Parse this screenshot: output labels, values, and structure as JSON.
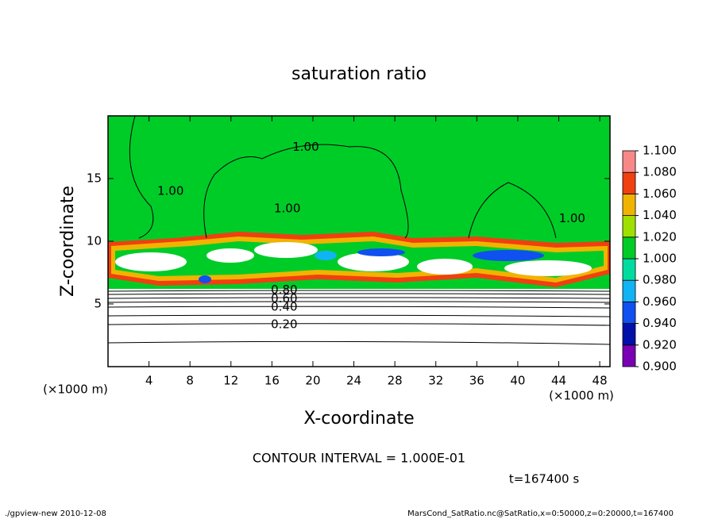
{
  "chart_data": {
    "type": "contour",
    "title": "saturation ratio",
    "xlabel": "X-coordinate",
    "ylabel": "Z-coordinate",
    "x_unit": "(×1000 m)",
    "y_unit": "(×1000 m)",
    "xlim": [
      0,
      49
    ],
    "xticks": [
      4,
      8,
      12,
      16,
      20,
      24,
      28,
      32,
      36,
      40,
      44,
      48
    ],
    "ylim": [
      0,
      20
    ],
    "yticks": [
      5,
      10,
      15
    ],
    "colorbar": {
      "levels": [
        {
          "value": 0.9,
          "label": "0.900"
        },
        {
          "value": 0.92,
          "label": "0.920"
        },
        {
          "value": 0.94,
          "label": "0.940"
        },
        {
          "value": 0.96,
          "label": "0.960"
        },
        {
          "value": 0.98,
          "label": "0.980"
        },
        {
          "value": 1.0,
          "label": "1.000"
        },
        {
          "value": 1.02,
          "label": "1.020"
        },
        {
          "value": 1.04,
          "label": "1.040"
        },
        {
          "value": 1.06,
          "label": "1.060"
        },
        {
          "value": 1.08,
          "label": "1.080"
        },
        {
          "value": 1.1,
          "label": "1.100"
        }
      ],
      "colors": [
        "#7a00b4",
        "#0010a8",
        "#1050f0",
        "#10b4f4",
        "#00dca0",
        "#00cc28",
        "#a0e000",
        "#f0b400",
        "#f04010",
        "#f88888"
      ]
    },
    "contour_labels": [
      {
        "text": "1.00",
        "x": 19.3,
        "y": 17.5
      },
      {
        "text": "1.00",
        "x": 6.1,
        "y": 14.0
      },
      {
        "text": "1.00",
        "x": 17.5,
        "y": 12.6
      },
      {
        "text": "1.00",
        "x": 45.3,
        "y": 11.8
      },
      {
        "text": "0.80",
        "x": 17.2,
        "y": 6.1
      },
      {
        "text": "0.60",
        "x": 17.2,
        "y": 5.4
      },
      {
        "text": "0.40",
        "x": 17.2,
        "y": 4.75
      },
      {
        "text": "0.20",
        "x": 17.2,
        "y": 3.35
      }
    ],
    "contour_interval": "CONTOUR INTERVAL = 1.000E-01",
    "time_label": "t=167400 s",
    "footer_left": "./gpview-new  2010-12-08",
    "footer_right": "MarsCond_SatRatio.nc@SatRatio,x=0:50000,z=0:20000,t=167400"
  }
}
